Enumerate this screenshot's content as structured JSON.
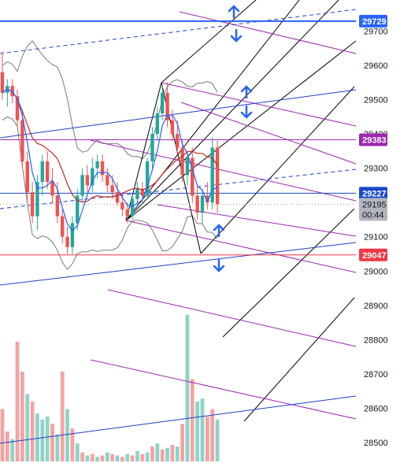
{
  "chart_data": {
    "type": "candlestick",
    "title": "",
    "xlabel": "",
    "ylabel": "",
    "ylim": [
      28460,
      29775
    ],
    "y_ticks": [
      29700,
      29600,
      29500,
      29400,
      29300,
      29100,
      29000,
      28900,
      28800,
      28700,
      28600,
      28500
    ],
    "price_tags": [
      {
        "label": "29729",
        "value": 29729,
        "color": "#2962ff",
        "text_color": "#ffffff"
      },
      {
        "label": "29383",
        "value": 29383,
        "color": "#9c27b0",
        "text_color": "#ffffff"
      },
      {
        "label": "29227",
        "value": 29227,
        "color": "#1848cc",
        "text_color": "#ffffff"
      },
      {
        "label": "29195",
        "value": 29195,
        "color": "#b2b5be",
        "text_color": "#131722"
      },
      {
        "label": "00:44",
        "value": 29165,
        "color": "#b2b5be",
        "text_color": "#131722"
      },
      {
        "label": "29047",
        "value": 29047,
        "color": "#f23645",
        "text_color": "#ffffff"
      }
    ],
    "colors": {
      "up": "#26a69a",
      "down": "#ef5350",
      "volume_up": "#8fd3c8",
      "volume_down": "#f4a3a3",
      "pitchfork": "#000000",
      "channel_purple": "#9c27b0",
      "trend_blue": "#1e40c8",
      "level_red": "#d32f2f",
      "bollinger": "#7a7a7a",
      "ma_red": "#c62828",
      "ma_blue": "#1e64ff",
      "arrow": "#2962ff"
    },
    "candles": [
      {
        "o": 29580,
        "h": 29640,
        "l": 29500,
        "c": 29520
      },
      {
        "o": 29520,
        "h": 29560,
        "l": 29480,
        "c": 29540
      },
      {
        "o": 29540,
        "h": 29560,
        "l": 29490,
        "c": 29510
      },
      {
        "o": 29510,
        "h": 29530,
        "l": 29420,
        "c": 29440
      },
      {
        "o": 29440,
        "h": 29470,
        "l": 29300,
        "c": 29320
      },
      {
        "o": 29320,
        "h": 29350,
        "l": 29200,
        "c": 29230
      },
      {
        "o": 29230,
        "h": 29260,
        "l": 29140,
        "c": 29160
      },
      {
        "o": 29160,
        "h": 29280,
        "l": 29120,
        "c": 29260
      },
      {
        "o": 29260,
        "h": 29340,
        "l": 29220,
        "c": 29320
      },
      {
        "o": 29320,
        "h": 29350,
        "l": 29240,
        "c": 29260
      },
      {
        "o": 29260,
        "h": 29300,
        "l": 29200,
        "c": 29220
      },
      {
        "o": 29220,
        "h": 29260,
        "l": 29140,
        "c": 29160
      },
      {
        "o": 29160,
        "h": 29180,
        "l": 29080,
        "c": 29100
      },
      {
        "o": 29100,
        "h": 29130,
        "l": 29050,
        "c": 29070
      },
      {
        "o": 29070,
        "h": 29160,
        "l": 29050,
        "c": 29140
      },
      {
        "o": 29140,
        "h": 29240,
        "l": 29120,
        "c": 29220
      },
      {
        "o": 29220,
        "h": 29300,
        "l": 29200,
        "c": 29280
      },
      {
        "o": 29280,
        "h": 29310,
        "l": 29230,
        "c": 29250
      },
      {
        "o": 29250,
        "h": 29330,
        "l": 29230,
        "c": 29300
      },
      {
        "o": 29300,
        "h": 29340,
        "l": 29270,
        "c": 29320
      },
      {
        "o": 29320,
        "h": 29340,
        "l": 29260,
        "c": 29280
      },
      {
        "o": 29280,
        "h": 29300,
        "l": 29230,
        "c": 29250
      },
      {
        "o": 29250,
        "h": 29280,
        "l": 29210,
        "c": 29230
      },
      {
        "o": 29230,
        "h": 29260,
        "l": 29190,
        "c": 29200
      },
      {
        "o": 29200,
        "h": 29230,
        "l": 29160,
        "c": 29180
      },
      {
        "o": 29180,
        "h": 29200,
        "l": 29140,
        "c": 29160
      },
      {
        "o": 29160,
        "h": 29220,
        "l": 29150,
        "c": 29210
      },
      {
        "o": 29210,
        "h": 29260,
        "l": 29190,
        "c": 29240
      },
      {
        "o": 29240,
        "h": 29260,
        "l": 29200,
        "c": 29220
      },
      {
        "o": 29220,
        "h": 29330,
        "l": 29210,
        "c": 29320
      },
      {
        "o": 29320,
        "h": 29420,
        "l": 29300,
        "c": 29400
      },
      {
        "o": 29400,
        "h": 29480,
        "l": 29380,
        "c": 29460
      },
      {
        "o": 29460,
        "h": 29540,
        "l": 29440,
        "c": 29520
      },
      {
        "o": 29520,
        "h": 29550,
        "l": 29420,
        "c": 29440
      },
      {
        "o": 29440,
        "h": 29470,
        "l": 29380,
        "c": 29400
      },
      {
        "o": 29400,
        "h": 29440,
        "l": 29340,
        "c": 29360
      },
      {
        "o": 29360,
        "h": 29380,
        "l": 29260,
        "c": 29280
      },
      {
        "o": 29280,
        "h": 29350,
        "l": 29250,
        "c": 29330
      },
      {
        "o": 29330,
        "h": 29360,
        "l": 29200,
        "c": 29220
      },
      {
        "o": 29220,
        "h": 29250,
        "l": 29150,
        "c": 29170
      },
      {
        "o": 29170,
        "h": 29240,
        "l": 29140,
        "c": 29220
      },
      {
        "o": 29220,
        "h": 29260,
        "l": 29180,
        "c": 29200
      },
      {
        "o": 29200,
        "h": 29390,
        "l": 29180,
        "c": 29360
      },
      {
        "o": 29360,
        "h": 29380,
        "l": 29170,
        "c": 29195
      }
    ],
    "volume_ylim": [
      0,
      100
    ],
    "volumes": [
      {
        "v": 35,
        "up": false
      },
      {
        "v": 20,
        "up": false
      },
      {
        "v": 15,
        "up": true
      },
      {
        "v": 80,
        "up": false
      },
      {
        "v": 60,
        "up": false
      },
      {
        "v": 45,
        "up": true
      },
      {
        "v": 40,
        "up": false
      },
      {
        "v": 32,
        "up": true
      },
      {
        "v": 28,
        "up": true
      },
      {
        "v": 30,
        "up": true
      },
      {
        "v": 25,
        "up": false
      },
      {
        "v": 18,
        "up": true
      },
      {
        "v": 60,
        "up": false
      },
      {
        "v": 35,
        "up": true
      },
      {
        "v": 22,
        "up": false
      },
      {
        "v": 12,
        "up": true
      },
      {
        "v": 6,
        "up": false
      },
      {
        "v": 4,
        "up": true
      },
      {
        "v": 5,
        "up": false
      },
      {
        "v": 3,
        "up": true
      },
      {
        "v": 4,
        "up": false
      },
      {
        "v": 6,
        "up": true
      },
      {
        "v": 5,
        "up": false
      },
      {
        "v": 4,
        "up": true
      },
      {
        "v": 3,
        "up": false
      },
      {
        "v": 5,
        "up": true
      },
      {
        "v": 4,
        "up": false
      },
      {
        "v": 7,
        "up": true
      },
      {
        "v": 5,
        "up": false
      },
      {
        "v": 6,
        "up": true
      },
      {
        "v": 10,
        "up": false
      },
      {
        "v": 12,
        "up": true
      },
      {
        "v": 8,
        "up": false
      },
      {
        "v": 9,
        "up": true
      },
      {
        "v": 11,
        "up": false
      },
      {
        "v": 10,
        "up": true
      },
      {
        "v": 25,
        "up": false
      },
      {
        "v": 98,
        "up": true
      },
      {
        "v": 55,
        "up": false
      },
      {
        "v": 40,
        "up": true
      },
      {
        "v": 42,
        "up": true
      },
      {
        "v": 30,
        "up": false
      },
      {
        "v": 35,
        "up": false
      },
      {
        "v": 28,
        "up": true
      }
    ]
  }
}
